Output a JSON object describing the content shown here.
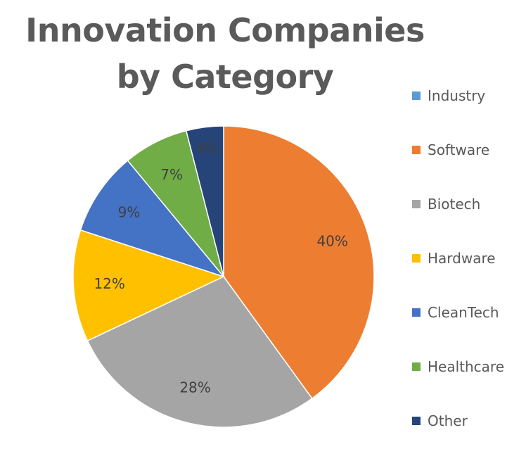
{
  "chart_data": {
    "type": "pie",
    "title": "Innovation Companies by Category",
    "title_lines": [
      "Innovation Companies",
      "by Category"
    ],
    "legend_position": "right",
    "start_angle_deg": 0,
    "direction": "clockwise",
    "slices": [
      {
        "name": "Industry",
        "value": 0,
        "label": "",
        "color": "#5b9bd5"
      },
      {
        "name": "Software",
        "value": 40,
        "label": "40%",
        "color": "#ed7d31"
      },
      {
        "name": "Biotech",
        "value": 28,
        "label": "28%",
        "color": "#a5a5a5"
      },
      {
        "name": "Hardware",
        "value": 12,
        "label": "12%",
        "color": "#ffc000"
      },
      {
        "name": "CleanTech",
        "value": 9,
        "label": "9%",
        "color": "#4472c4"
      },
      {
        "name": "Healthcare",
        "value": 7,
        "label": "7%",
        "color": "#70ad47"
      },
      {
        "name": "Other",
        "value": 4,
        "label": "4%",
        "color": "#264478"
      }
    ]
  }
}
